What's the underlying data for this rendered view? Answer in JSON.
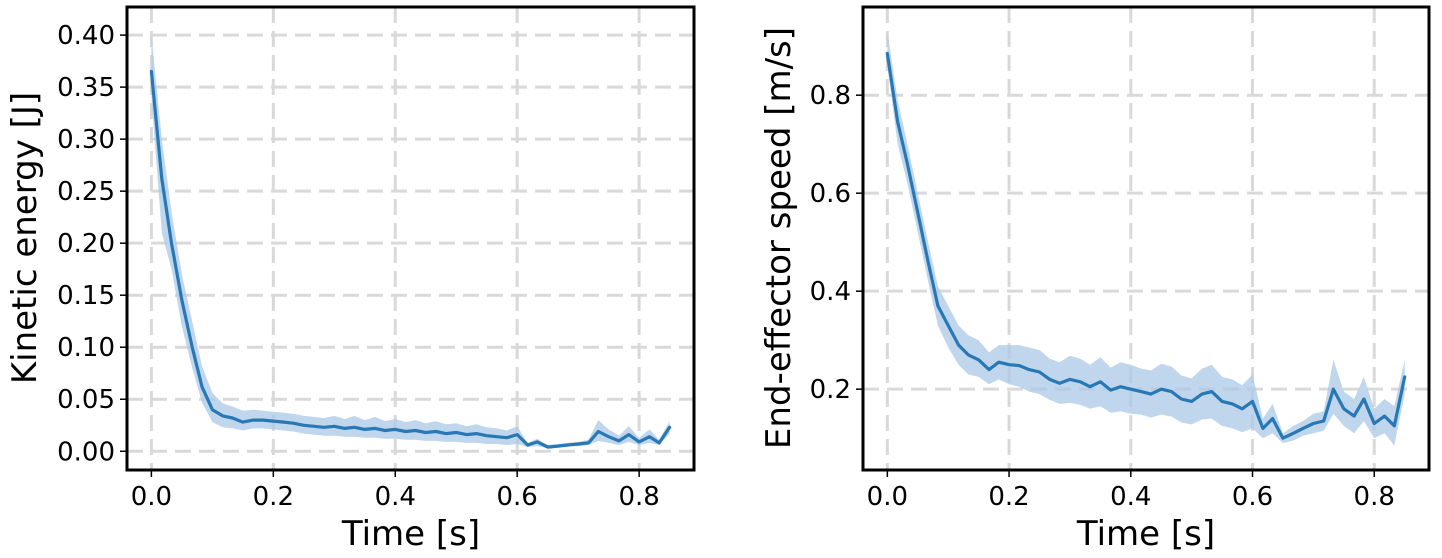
{
  "chart_data": [
    {
      "type": "line",
      "xlabel": "Time [s]",
      "ylabel": "Kinetic energy [J]",
      "xlim": [
        -0.04,
        0.89
      ],
      "ylim": [
        -0.018,
        0.427
      ],
      "xticks": [
        0.0,
        0.2,
        0.4,
        0.6,
        0.8
      ],
      "xtick_labels": [
        "0.0",
        "0.2",
        "0.4",
        "0.6",
        "0.8"
      ],
      "yticks": [
        0.0,
        0.05,
        0.1,
        0.15,
        0.2,
        0.25,
        0.3,
        0.35,
        0.4
      ],
      "ytick_labels": [
        "0.00",
        "0.05",
        "0.10",
        "0.15",
        "0.20",
        "0.25",
        "0.30",
        "0.35",
        "0.40"
      ],
      "grid": true,
      "series": [
        {
          "color": "#2878b5",
          "band_color": "#a9c8e5",
          "x": [
            0.0,
            0.017,
            0.033,
            0.05,
            0.067,
            0.083,
            0.1,
            0.117,
            0.133,
            0.15,
            0.167,
            0.183,
            0.2,
            0.217,
            0.233,
            0.25,
            0.267,
            0.283,
            0.3,
            0.317,
            0.333,
            0.35,
            0.367,
            0.383,
            0.4,
            0.417,
            0.433,
            0.45,
            0.467,
            0.483,
            0.5,
            0.517,
            0.533,
            0.55,
            0.567,
            0.583,
            0.6,
            0.617,
            0.633,
            0.65,
            0.667,
            0.683,
            0.7,
            0.717,
            0.733,
            0.75,
            0.767,
            0.783,
            0.8,
            0.817,
            0.833,
            0.85
          ],
          "y": [
            0.365,
            0.262,
            0.2,
            0.145,
            0.1,
            0.062,
            0.04,
            0.034,
            0.032,
            0.028,
            0.03,
            0.03,
            0.029,
            0.028,
            0.027,
            0.025,
            0.024,
            0.023,
            0.024,
            0.022,
            0.023,
            0.021,
            0.022,
            0.02,
            0.021,
            0.019,
            0.02,
            0.018,
            0.019,
            0.017,
            0.018,
            0.016,
            0.017,
            0.015,
            0.014,
            0.013,
            0.016,
            0.006,
            0.009,
            0.004,
            0.005,
            0.006,
            0.007,
            0.008,
            0.019,
            0.014,
            0.01,
            0.016,
            0.009,
            0.014,
            0.008,
            0.023
          ],
          "lower": [
            0.34,
            0.21,
            0.175,
            0.12,
            0.08,
            0.047,
            0.028,
            0.023,
            0.022,
            0.02,
            0.022,
            0.022,
            0.021,
            0.02,
            0.019,
            0.017,
            0.016,
            0.015,
            0.015,
            0.014,
            0.014,
            0.013,
            0.013,
            0.012,
            0.012,
            0.011,
            0.011,
            0.01,
            0.01,
            0.009,
            0.009,
            0.008,
            0.008,
            0.007,
            0.007,
            0.006,
            0.007,
            0.004,
            0.005,
            0.003,
            0.004,
            0.005,
            0.005,
            0.006,
            0.01,
            0.008,
            0.006,
            0.009,
            0.006,
            0.008,
            0.006,
            0.017
          ],
          "upper": [
            0.4,
            0.3,
            0.23,
            0.17,
            0.125,
            0.082,
            0.056,
            0.046,
            0.043,
            0.039,
            0.04,
            0.039,
            0.038,
            0.037,
            0.036,
            0.034,
            0.033,
            0.032,
            0.034,
            0.031,
            0.034,
            0.03,
            0.033,
            0.029,
            0.031,
            0.028,
            0.03,
            0.027,
            0.029,
            0.026,
            0.027,
            0.024,
            0.026,
            0.023,
            0.022,
            0.02,
            0.024,
            0.008,
            0.012,
            0.006,
            0.007,
            0.008,
            0.009,
            0.011,
            0.03,
            0.021,
            0.015,
            0.024,
            0.013,
            0.021,
            0.011,
            0.029
          ]
        }
      ]
    },
    {
      "type": "line",
      "xlabel": "Time [s]",
      "ylabel": "End-effector speed [m/s]",
      "xlim": [
        -0.04,
        0.89
      ],
      "ylim": [
        0.035,
        0.98
      ],
      "xticks": [
        0.0,
        0.2,
        0.4,
        0.6,
        0.8
      ],
      "xtick_labels": [
        "0.0",
        "0.2",
        "0.4",
        "0.6",
        "0.8"
      ],
      "yticks": [
        0.2,
        0.4,
        0.6,
        0.8
      ],
      "ytick_labels": [
        "0.2",
        "0.4",
        "0.6",
        "0.8"
      ],
      "grid": true,
      "series": [
        {
          "color": "#2878b5",
          "band_color": "#a9c8e5",
          "x": [
            0.0,
            0.017,
            0.033,
            0.05,
            0.067,
            0.083,
            0.1,
            0.117,
            0.133,
            0.15,
            0.167,
            0.183,
            0.2,
            0.217,
            0.233,
            0.25,
            0.267,
            0.283,
            0.3,
            0.317,
            0.333,
            0.35,
            0.367,
            0.383,
            0.4,
            0.417,
            0.433,
            0.45,
            0.467,
            0.483,
            0.5,
            0.517,
            0.533,
            0.55,
            0.567,
            0.583,
            0.6,
            0.617,
            0.633,
            0.65,
            0.667,
            0.683,
            0.7,
            0.717,
            0.733,
            0.75,
            0.767,
            0.783,
            0.8,
            0.817,
            0.833,
            0.85
          ],
          "y": [
            0.885,
            0.745,
            0.66,
            0.56,
            0.46,
            0.37,
            0.33,
            0.29,
            0.27,
            0.26,
            0.24,
            0.255,
            0.25,
            0.248,
            0.24,
            0.235,
            0.22,
            0.212,
            0.22,
            0.215,
            0.205,
            0.215,
            0.198,
            0.205,
            0.2,
            0.195,
            0.19,
            0.2,
            0.195,
            0.18,
            0.175,
            0.19,
            0.195,
            0.175,
            0.17,
            0.16,
            0.175,
            0.12,
            0.14,
            0.1,
            0.11,
            0.12,
            0.13,
            0.135,
            0.2,
            0.16,
            0.145,
            0.18,
            0.13,
            0.145,
            0.125,
            0.225
          ],
          "lower": [
            0.86,
            0.7,
            0.62,
            0.52,
            0.42,
            0.33,
            0.285,
            0.25,
            0.23,
            0.225,
            0.21,
            0.22,
            0.21,
            0.205,
            0.195,
            0.19,
            0.178,
            0.17,
            0.172,
            0.168,
            0.16,
            0.165,
            0.152,
            0.155,
            0.15,
            0.148,
            0.142,
            0.148,
            0.144,
            0.132,
            0.128,
            0.138,
            0.14,
            0.125,
            0.12,
            0.112,
            0.12,
            0.1,
            0.11,
            0.09,
            0.095,
            0.105,
            0.11,
            0.115,
            0.15,
            0.125,
            0.11,
            0.135,
            0.1,
            0.11,
            0.085,
            0.19
          ],
          "upper": [
            0.93,
            0.79,
            0.7,
            0.6,
            0.5,
            0.41,
            0.37,
            0.33,
            0.31,
            0.3,
            0.275,
            0.29,
            0.29,
            0.29,
            0.285,
            0.28,
            0.262,
            0.255,
            0.268,
            0.262,
            0.25,
            0.265,
            0.244,
            0.255,
            0.25,
            0.242,
            0.238,
            0.252,
            0.246,
            0.228,
            0.222,
            0.242,
            0.25,
            0.225,
            0.22,
            0.208,
            0.23,
            0.14,
            0.17,
            0.11,
            0.125,
            0.135,
            0.15,
            0.155,
            0.26,
            0.195,
            0.18,
            0.225,
            0.16,
            0.18,
            0.165,
            0.26
          ]
        }
      ]
    }
  ]
}
